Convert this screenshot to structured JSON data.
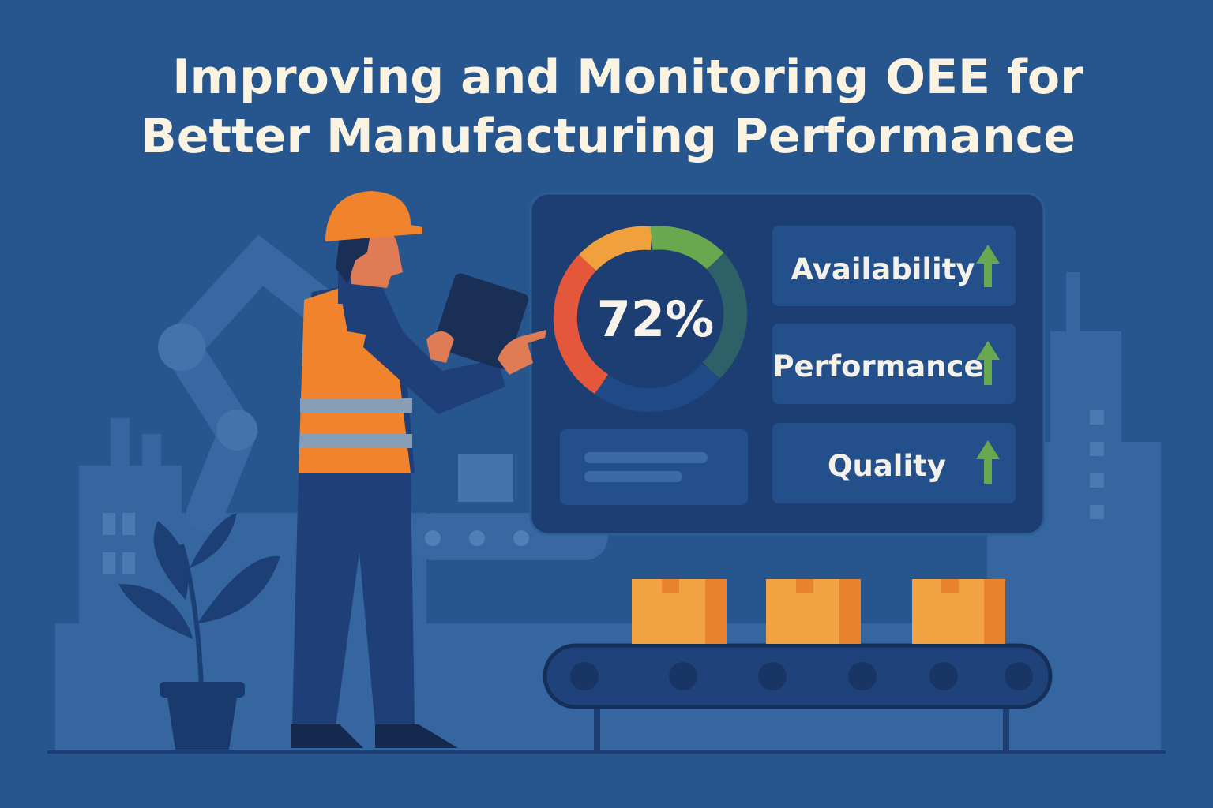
{
  "title": {
    "lines": [
      "Improving and Monitoring OEE for",
      "Better Manufacturing Performance"
    ]
  },
  "dashboard": {
    "gauge_label": "72%",
    "metrics": [
      "Availability",
      "Performance",
      "Quality"
    ]
  }
}
